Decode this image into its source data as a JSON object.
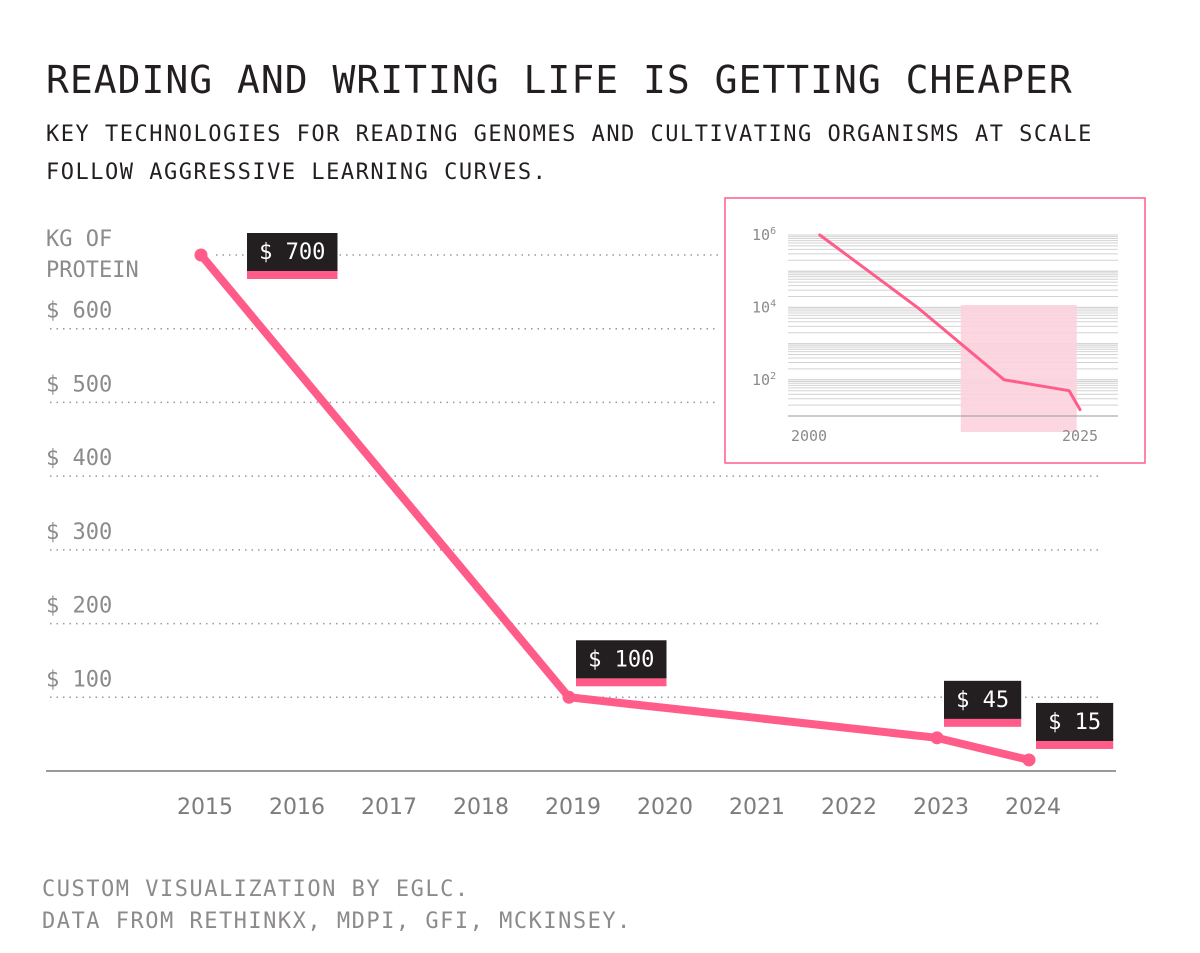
{
  "title": "READING AND WRITING LIFE IS GETTING CHEAPER",
  "subtitle": "KEY TECHNOLOGIES FOR READING GENOMES AND CULTIVATING ORGANISMS AT SCALE FOLLOW AGGRESSIVE LEARNING CURVES.",
  "footer": {
    "line1": "CUSTOM VISUALIZATION BY EGLC.",
    "line2": "DATA FROM RETHINKX, MDPI, GFI, MCKINSEY."
  },
  "colors": {
    "accent": "#ff5c8a",
    "label_bg": "#231f20",
    "grid": "#9a9899",
    "axis_text": "#8c8a8b",
    "inset_highlight": "#fcd3df"
  },
  "chart_data": [
    {
      "type": "line",
      "ylabel": "KG OF PROTEIN",
      "yticks": [
        {
          "value": 700,
          "label": ""
        },
        {
          "value": 600,
          "label": "$ 600"
        },
        {
          "value": 500,
          "label": "$ 500"
        },
        {
          "value": 400,
          "label": "$ 400"
        },
        {
          "value": 300,
          "label": "$ 300"
        },
        {
          "value": 200,
          "label": "$ 200"
        },
        {
          "value": 100,
          "label": "$ 100"
        }
      ],
      "ylim": [
        0,
        700
      ],
      "x_ticks": [
        "2015",
        "2016",
        "2017",
        "2018",
        "2019",
        "2020",
        "2021",
        "2022",
        "2023",
        "2024"
      ],
      "series": [
        {
          "points": [
            {
              "x": 2015,
              "y": 700,
              "label": "$ 700"
            },
            {
              "x": 2019,
              "y": 100,
              "label": "$ 100"
            },
            {
              "x": 2023,
              "y": 45,
              "label": "$ 45"
            },
            {
              "x": 2024,
              "y": 15,
              "label": "$ 15"
            }
          ]
        }
      ],
      "grid": true,
      "legend": "none"
    },
    {
      "type": "line",
      "scale": "log",
      "yticks": [
        {
          "value": 1000000,
          "base": "10",
          "exp": "6"
        },
        {
          "value": 10000,
          "base": "10",
          "exp": "4"
        },
        {
          "value": 100,
          "base": "10",
          "exp": "2"
        }
      ],
      "x_ticks": [
        "2000",
        "2025"
      ],
      "xlim": [
        2000,
        2025
      ],
      "ylim": [
        10,
        1000000
      ],
      "series": [
        {
          "points": [
            {
              "x": 2001,
              "y": 1000000
            },
            {
              "x": 2010,
              "y": 10000
            },
            {
              "x": 2018,
              "y": 100
            },
            {
              "x": 2024,
              "y": 50
            },
            {
              "x": 2025,
              "y": 15
            }
          ]
        }
      ],
      "highlight": {
        "x_from": 2014,
        "x_to": 2024.7
      },
      "grid": true,
      "legend": "none"
    }
  ]
}
